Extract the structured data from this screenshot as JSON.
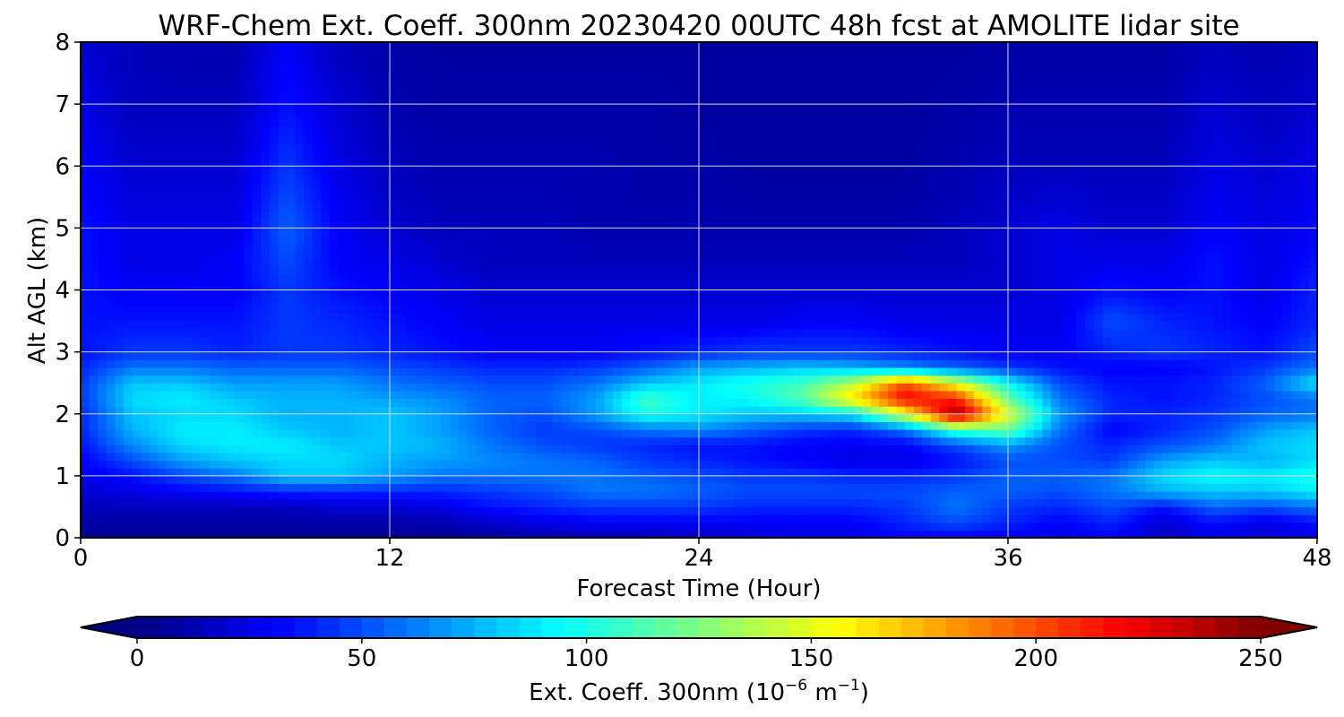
{
  "chart_data": {
    "type": "heatmap",
    "title": "WRF-Chem Ext. Coeff. 300nm  20230420 00UTC 48h fcst at AMOLITE lidar site",
    "xlabel": "Forecast Time (Hour)",
    "ylabel": "Alt AGL (km)",
    "xlim": [
      0,
      48
    ],
    "ylim": [
      0,
      8
    ],
    "x_ticks": [
      "0",
      "12",
      "24",
      "36",
      "48"
    ],
    "x_tick_values": [
      0,
      12,
      24,
      36,
      48
    ],
    "y_ticks": [
      "0",
      "1",
      "2",
      "3",
      "4",
      "5",
      "6",
      "7",
      "8"
    ],
    "y_tick_values": [
      0,
      1,
      2,
      3,
      4,
      5,
      6,
      7,
      8
    ],
    "grid": true,
    "colormap": "jet",
    "colorbar": {
      "label_main": "Ext. Coeff. 300nm  (10",
      "label_exp1": "−6",
      "label_mid": " m",
      "label_exp2": "−1",
      "label_end": ")",
      "range": [
        0,
        250
      ],
      "ticks": [
        "0",
        "50",
        "100",
        "150",
        "200",
        "250"
      ],
      "tick_values": [
        0,
        50,
        100,
        150,
        200,
        250
      ],
      "extend": "both",
      "orientation": "horizontal"
    },
    "x": [
      0,
      2,
      4,
      6,
      8,
      10,
      12,
      14,
      16,
      18,
      20,
      22,
      24,
      26,
      28,
      30,
      32,
      34,
      36,
      38,
      40,
      42,
      44,
      46,
      48
    ],
    "y": [
      0,
      0.25,
      0.5,
      0.75,
      1.0,
      1.25,
      1.5,
      1.75,
      2.0,
      2.25,
      2.5,
      2.75,
      3.0,
      3.5,
      4.0,
      4.5,
      5.0,
      6.0,
      7.0,
      8.0
    ],
    "z": [
      [
        5,
        5,
        5,
        5,
        5,
        5,
        5,
        5,
        8,
        10,
        12,
        12,
        15,
        20,
        25,
        25,
        30,
        30,
        28,
        25,
        30,
        15,
        25,
        20,
        25
      ],
      [
        10,
        10,
        10,
        10,
        10,
        10,
        10,
        12,
        20,
        25,
        30,
        30,
        30,
        30,
        30,
        30,
        40,
        50,
        40,
        30,
        40,
        20,
        35,
        25,
        35
      ],
      [
        15,
        15,
        15,
        15,
        15,
        20,
        20,
        25,
        35,
        40,
        45,
        45,
        45,
        40,
        40,
        40,
        45,
        60,
        45,
        40,
        50,
        35,
        55,
        50,
        60
      ],
      [
        20,
        25,
        30,
        35,
        40,
        40,
        40,
        40,
        45,
        50,
        60,
        60,
        55,
        50,
        50,
        50,
        50,
        55,
        55,
        50,
        60,
        75,
        80,
        80,
        90
      ],
      [
        25,
        35,
        50,
        60,
        80,
        80,
        70,
        60,
        60,
        60,
        60,
        55,
        50,
        45,
        45,
        40,
        40,
        45,
        55,
        55,
        60,
        85,
        95,
        90,
        100
      ],
      [
        30,
        50,
        70,
        80,
        85,
        85,
        75,
        70,
        65,
        60,
        55,
        45,
        40,
        35,
        30,
        25,
        25,
        35,
        50,
        50,
        45,
        70,
        80,
        75,
        85
      ],
      [
        35,
        65,
        85,
        90,
        90,
        80,
        80,
        75,
        60,
        50,
        45,
        40,
        35,
        35,
        30,
        30,
        30,
        50,
        70,
        50,
        40,
        50,
        60,
        80,
        85
      ],
      [
        40,
        75,
        90,
        90,
        80,
        75,
        80,
        70,
        55,
        45,
        50,
        60,
        65,
        55,
        45,
        40,
        60,
        110,
        120,
        60,
        30,
        40,
        50,
        70,
        80
      ],
      [
        40,
        80,
        85,
        85,
        75,
        75,
        80,
        70,
        55,
        50,
        70,
        100,
        90,
        80,
        80,
        90,
        150,
        245,
        150,
        70,
        40,
        40,
        45,
        55,
        60
      ],
      [
        45,
        85,
        90,
        80,
        75,
        75,
        70,
        65,
        55,
        55,
        70,
        110,
        90,
        95,
        115,
        165,
        220,
        210,
        120,
        60,
        40,
        35,
        40,
        50,
        60
      ],
      [
        45,
        80,
        80,
        70,
        70,
        70,
        60,
        55,
        50,
        50,
        60,
        80,
        90,
        100,
        110,
        140,
        200,
        150,
        95,
        50,
        35,
        35,
        40,
        55,
        90
      ],
      [
        40,
        60,
        60,
        55,
        55,
        55,
        50,
        45,
        40,
        40,
        45,
        55,
        70,
        75,
        80,
        75,
        65,
        55,
        45,
        35,
        30,
        30,
        35,
        45,
        60
      ],
      [
        35,
        45,
        45,
        40,
        45,
        45,
        40,
        35,
        30,
        30,
        30,
        35,
        40,
        45,
        45,
        45,
        40,
        35,
        30,
        30,
        40,
        45,
        40,
        35,
        50
      ],
      [
        35,
        35,
        35,
        35,
        45,
        40,
        35,
        30,
        25,
        25,
        25,
        25,
        25,
        25,
        30,
        30,
        25,
        25,
        25,
        25,
        50,
        40,
        35,
        30,
        40
      ],
      [
        35,
        30,
        30,
        30,
        45,
        35,
        30,
        25,
        20,
        20,
        20,
        20,
        20,
        20,
        20,
        20,
        20,
        20,
        20,
        25,
        35,
        30,
        35,
        25,
        40
      ],
      [
        35,
        25,
        25,
        30,
        50,
        30,
        25,
        20,
        15,
        15,
        15,
        15,
        15,
        15,
        15,
        15,
        15,
        15,
        20,
        25,
        25,
        25,
        35,
        25,
        35
      ],
      [
        35,
        25,
        25,
        25,
        55,
        30,
        20,
        15,
        15,
        15,
        12,
        12,
        12,
        12,
        12,
        12,
        12,
        15,
        20,
        25,
        20,
        20,
        30,
        25,
        30
      ],
      [
        30,
        20,
        20,
        20,
        45,
        25,
        15,
        12,
        12,
        12,
        12,
        10,
        10,
        8,
        8,
        8,
        8,
        12,
        15,
        15,
        15,
        15,
        25,
        20,
        25
      ],
      [
        25,
        15,
        15,
        15,
        35,
        20,
        12,
        10,
        10,
        10,
        10,
        10,
        8,
        8,
        8,
        8,
        8,
        10,
        12,
        12,
        12,
        12,
        20,
        15,
        20
      ],
      [
        20,
        15,
        12,
        12,
        30,
        15,
        10,
        8,
        8,
        8,
        8,
        8,
        8,
        8,
        8,
        8,
        8,
        8,
        10,
        10,
        10,
        10,
        15,
        12,
        15
      ]
    ]
  }
}
